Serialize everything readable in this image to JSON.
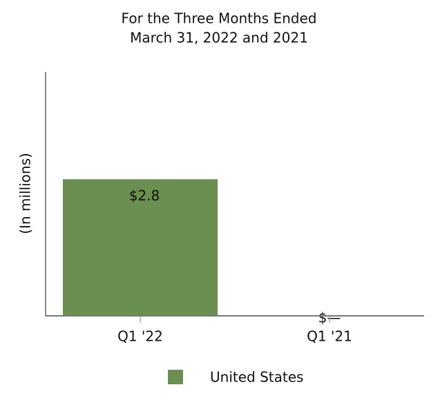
{
  "chart_data": {
    "type": "bar",
    "title": [
      "For the Three Months Ended",
      "March 31, 2022 and 2021"
    ],
    "y_label": "(In millions)",
    "categories": [
      "Q1 '22",
      "Q1 '21"
    ],
    "series": [
      {
        "name": "United States",
        "color": "#6a8f50",
        "values": [
          2.8,
          0
        ],
        "value_labels": [
          "$2.8",
          "$—"
        ]
      }
    ],
    "ylim": [
      0,
      5
    ]
  }
}
